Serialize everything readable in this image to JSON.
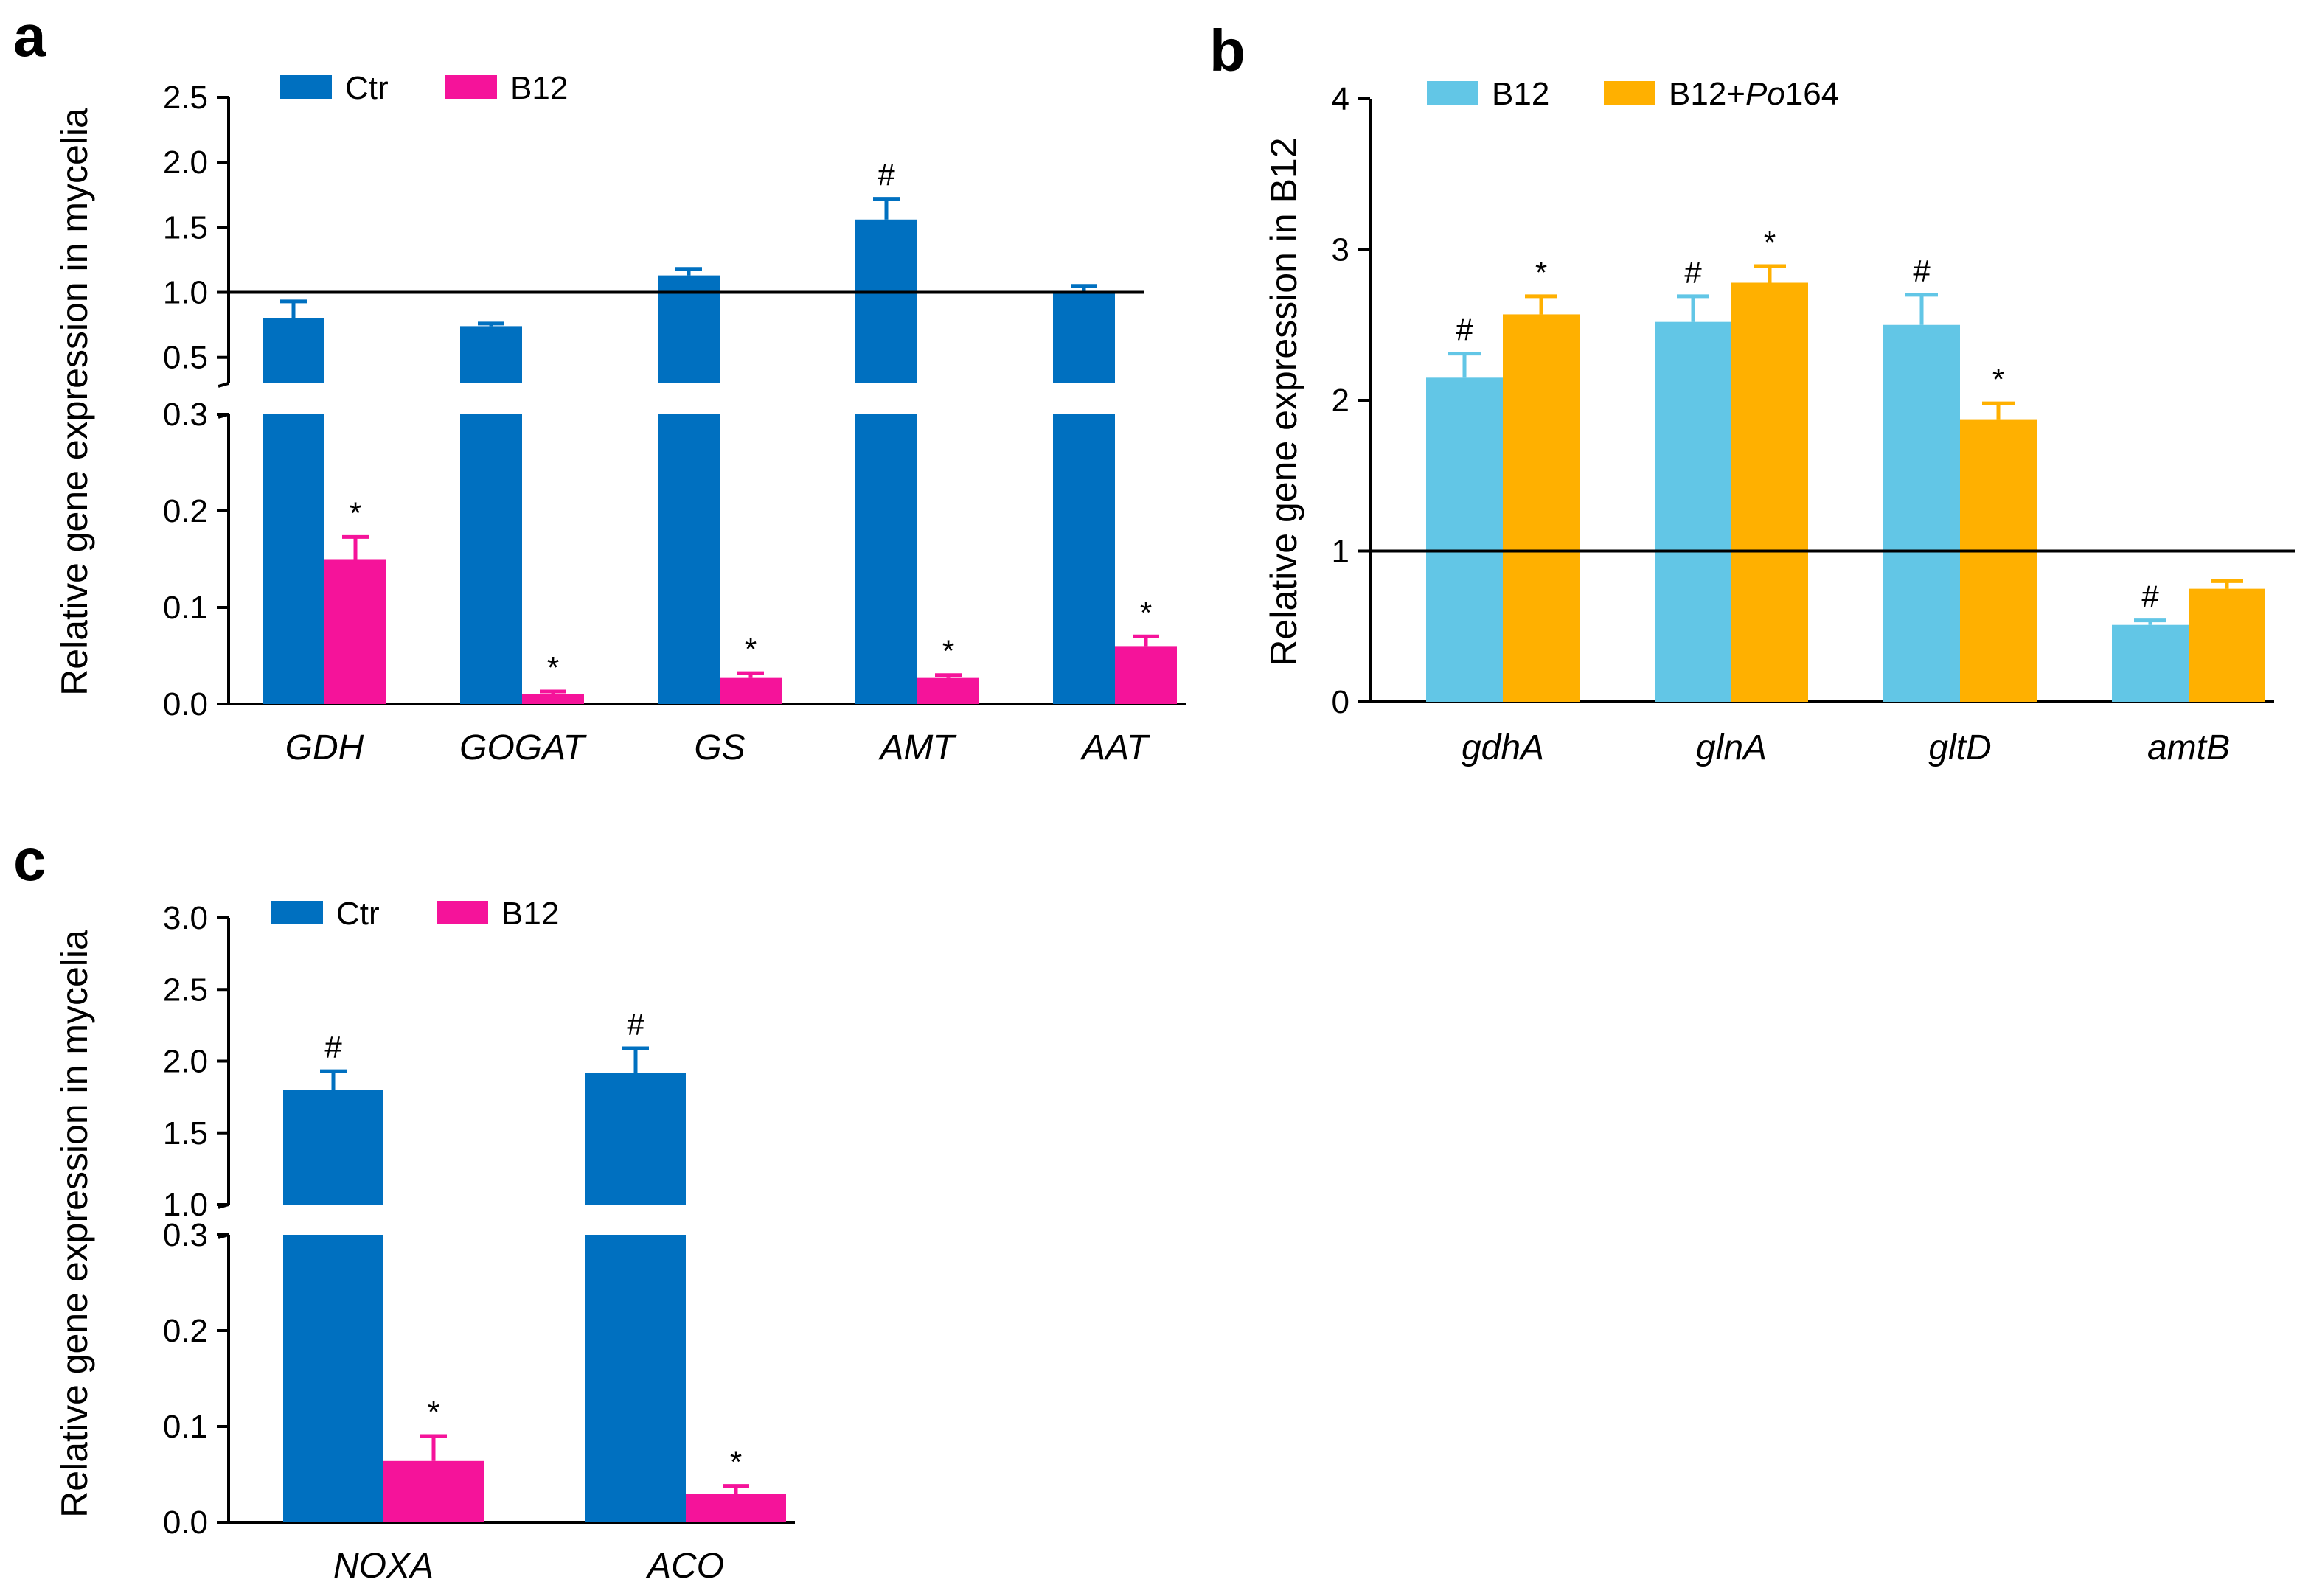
{
  "colors": {
    "ctr": "#0070C0",
    "b12_pink": "#F5139A",
    "b12_light": "#62C6E6",
    "b12_po164": "#FFB000",
    "axis": "#000000"
  },
  "chart_data": [
    {
      "panel": "a",
      "type": "bar",
      "broken_axis": true,
      "ylabel": "Relative gene expression in mycelia",
      "categories": [
        "GDH",
        "GOGAT",
        "GS",
        "AMT",
        "AAT"
      ],
      "series": [
        {
          "name": "Ctr",
          "color_key": "ctr",
          "values": [
            0.8,
            0.74,
            1.13,
            1.56,
            1.0
          ],
          "errors": [
            0.13,
            0.02,
            0.05,
            0.16,
            0.05
          ],
          "marks": [
            "",
            "",
            "",
            "#",
            ""
          ]
        },
        {
          "name": "B12",
          "color_key": "b12_pink",
          "values": [
            0.15,
            0.01,
            0.027,
            0.027,
            0.06
          ],
          "errors": [
            0.023,
            0.003,
            0.005,
            0.003,
            0.01
          ],
          "marks": [
            "*",
            "*",
            "*",
            "*",
            "*"
          ]
        }
      ],
      "lower": {
        "ylim": [
          0,
          0.3
        ],
        "ticks": [
          "0.0",
          "0.1",
          "0.2",
          "0.3"
        ]
      },
      "upper": {
        "ylim": [
          0.3,
          2.5
        ],
        "ticks": [
          "0.5",
          "1.0",
          "1.5",
          "2.0",
          "2.5"
        ]
      },
      "reference_line": 1.0,
      "legend": [
        "Ctr",
        "B12"
      ]
    },
    {
      "panel": "b",
      "type": "bar",
      "broken_axis": false,
      "ylabel": "Relative gene expression in B12",
      "categories": [
        "gdhA",
        "glnA",
        "gltD",
        "amtB"
      ],
      "series": [
        {
          "name": "B12",
          "color_key": "b12_light",
          "values": [
            2.15,
            2.52,
            2.5,
            0.51
          ],
          "errors": [
            0.16,
            0.17,
            0.2,
            0.03
          ],
          "marks": [
            "#",
            "#",
            "#",
            "#"
          ]
        },
        {
          "name": "B12+Po164",
          "color_key": "b12_po164",
          "values": [
            2.57,
            2.78,
            1.87,
            0.75
          ],
          "errors": [
            0.12,
            0.11,
            0.11,
            0.05
          ],
          "marks": [
            "*",
            "*",
            "*",
            ""
          ]
        }
      ],
      "ylim": [
        0,
        4
      ],
      "ticks": [
        "0",
        "1",
        "2",
        "3",
        "4"
      ],
      "reference_line": 1,
      "legend": [
        "B12",
        "B12+",
        "Po",
        "164"
      ]
    },
    {
      "panel": "c",
      "type": "bar",
      "broken_axis": true,
      "ylabel": "Relative gene expression in mycelia",
      "categories": [
        "NOXA",
        "ACO"
      ],
      "series": [
        {
          "name": "Ctr",
          "color_key": "ctr",
          "values": [
            1.8,
            1.92
          ],
          "errors": [
            0.13,
            0.17
          ],
          "marks": [
            "#",
            "#"
          ]
        },
        {
          "name": "B12",
          "color_key": "b12_pink",
          "values": [
            0.064,
            0.03
          ],
          "errors": [
            0.026,
            0.008
          ],
          "marks": [
            "*",
            "*"
          ]
        }
      ],
      "lower": {
        "ylim": [
          0,
          0.3
        ],
        "ticks": [
          "0.0",
          "0.1",
          "0.2",
          "0.3"
        ]
      },
      "upper": {
        "ylim": [
          1.0,
          3.0
        ],
        "ticks": [
          "1.0",
          "1.5",
          "2.0",
          "2.5",
          "3.0"
        ]
      },
      "legend": [
        "Ctr",
        "B12"
      ]
    }
  ]
}
